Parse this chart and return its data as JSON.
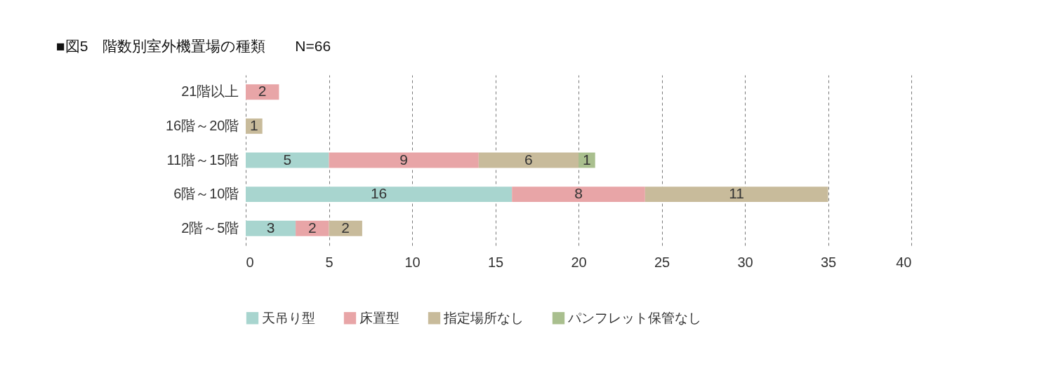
{
  "chart_data": {
    "type": "bar",
    "orientation": "horizontal",
    "stacked": true,
    "title": "■図5　階数別室外機置場の種類　　N=66",
    "categories": [
      "21階以上",
      "16階～20階",
      "11階～15階",
      "6階～10階",
      "2階～5階"
    ],
    "series": [
      {
        "name": "天吊り型",
        "color": "#a8d5cf",
        "values": [
          null,
          null,
          5,
          16,
          3
        ]
      },
      {
        "name": "床置型",
        "color": "#e8a5a7",
        "values": [
          2,
          null,
          9,
          8,
          2
        ]
      },
      {
        "name": "指定場所なし",
        "color": "#c8bb9b",
        "values": [
          null,
          1,
          6,
          11,
          2
        ]
      },
      {
        "name": "パンフレット保管なし",
        "color": "#a9bf8e",
        "values": [
          null,
          null,
          1,
          null,
          null
        ]
      }
    ],
    "xlim": [
      0,
      40
    ],
    "xticks": [
      0,
      5,
      10,
      15,
      20,
      25,
      30,
      35,
      40
    ],
    "grid": "x",
    "legend": "bottom",
    "data_labels": true
  }
}
